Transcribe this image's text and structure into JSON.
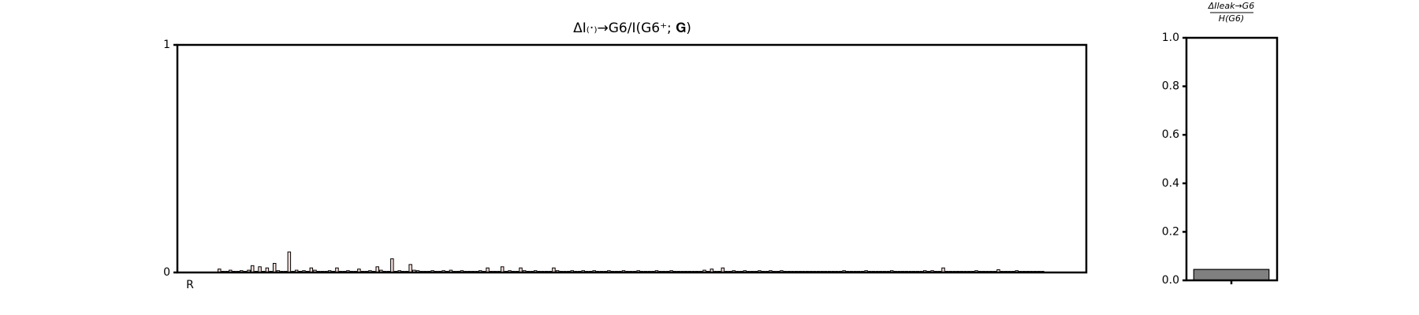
{
  "chart_data": [
    {
      "type": "bar",
      "title": "ΔI₍·₎→G6/I(G6⁺; 𝐆)",
      "categories": [
        "R",
        null,
        null,
        null,
        null,
        null,
        null,
        null,
        null,
        null,
        null,
        null,
        null,
        null,
        null,
        null,
        null,
        null,
        null,
        null,
        null,
        null,
        null,
        null,
        null,
        null,
        null,
        null,
        null,
        null,
        null,
        null,
        null,
        null,
        null,
        null,
        null,
        null,
        null,
        null,
        null,
        null,
        null,
        null,
        null,
        null,
        null,
        null,
        null,
        null,
        null,
        null,
        null,
        null,
        null,
        null,
        null,
        null,
        null,
        null,
        null,
        null,
        null,
        null,
        null,
        null,
        null,
        null,
        null,
        null,
        null,
        null,
        null,
        null,
        null,
        null,
        null,
        null,
        null,
        null,
        null,
        null,
        null,
        null,
        null,
        null,
        null,
        null,
        null,
        null,
        null,
        null,
        null,
        null,
        null,
        null,
        null,
        null,
        null,
        null,
        null,
        null,
        null,
        null,
        null,
        null,
        null,
        null,
        null,
        null,
        null,
        null,
        null,
        null,
        null,
        null,
        null,
        null,
        null,
        null,
        null,
        null,
        null,
        null,
        null,
        null,
        null,
        null,
        null,
        null,
        null,
        null,
        null,
        null,
        null,
        null,
        null,
        null,
        null,
        null,
        null,
        null,
        null,
        null,
        null,
        null,
        null,
        null,
        null,
        null,
        null,
        null,
        null,
        null,
        null,
        null,
        null,
        null,
        null,
        null,
        null,
        null,
        null,
        null,
        null,
        null,
        null,
        null,
        null,
        null,
        null,
        null,
        null,
        null,
        null,
        null,
        null,
        null,
        null,
        null,
        null,
        null,
        null,
        null,
        null,
        null,
        null,
        null,
        null,
        null,
        null,
        null,
        null,
        null,
        null,
        null,
        null,
        null,
        null,
        null,
        null,
        null,
        null,
        null,
        null,
        null,
        null,
        null,
        null,
        null,
        null,
        null,
        null,
        null,
        null,
        null,
        null,
        null,
        null,
        null,
        null,
        null,
        null,
        null,
        null,
        null,
        null,
        null,
        null,
        null,
        null,
        null,
        null,
        null,
        null,
        null,
        null,
        null,
        null,
        null
      ],
      "values": [
        0,
        0,
        0,
        0,
        0,
        0,
        0,
        0,
        0.015,
        0.005,
        0.005,
        0.01,
        0.005,
        0.005,
        0.008,
        0.005,
        0.01,
        0.03,
        0.005,
        0.025,
        0.005,
        0.02,
        0.005,
        0.04,
        0.008,
        0.005,
        0.005,
        0.09,
        0.005,
        0.01,
        0.005,
        0.008,
        0.005,
        0.02,
        0.01,
        0.005,
        0.005,
        0.005,
        0.008,
        0.005,
        0.02,
        0.005,
        0.005,
        0.008,
        0.005,
        0.005,
        0.015,
        0.005,
        0.005,
        0.008,
        0.005,
        0.025,
        0.01,
        0.005,
        0.005,
        0.06,
        0.005,
        0.008,
        0.005,
        0.005,
        0.035,
        0.01,
        0.008,
        0.005,
        0.005,
        0.005,
        0.008,
        0.005,
        0.005,
        0.008,
        0.005,
        0.01,
        0.005,
        0.005,
        0.008,
        0.005,
        0.005,
        0.005,
        0.005,
        0.008,
        0.005,
        0.02,
        0.005,
        0.005,
        0.005,
        0.025,
        0.005,
        0.008,
        0.005,
        0.005,
        0.02,
        0.008,
        0.005,
        0.005,
        0.008,
        0.005,
        0.005,
        0.005,
        0.005,
        0.02,
        0.008,
        0.005,
        0.005,
        0.005,
        0.008,
        0.005,
        0.005,
        0.008,
        0.005,
        0.005,
        0.008,
        0.005,
        0.005,
        0.005,
        0.008,
        0.005,
        0.005,
        0.005,
        0.008,
        0.005,
        0.005,
        0.005,
        0.008,
        0.005,
        0.005,
        0.005,
        0.005,
        0.008,
        0.005,
        0.005,
        0.005,
        0.008,
        0.005,
        0.005,
        0.005,
        0.005,
        0.005,
        0.005,
        0.005,
        0.005,
        0.01,
        0.005,
        0.015,
        0.005,
        0.005,
        0.02,
        0.005,
        0.005,
        0.008,
        0.005,
        0.005,
        0.008,
        0.005,
        0.005,
        0.005,
        0.008,
        0.005,
        0.005,
        0.008,
        0.005,
        0.005,
        0.008,
        0.005,
        0.005,
        0.005,
        0.005,
        0.005,
        0.005,
        0.005,
        0.005,
        0.005,
        0.005,
        0.005,
        0.005,
        0.005,
        0.005,
        0.005,
        0.005,
        0.008,
        0.005,
        0.005,
        0.005,
        0.005,
        0.005,
        0.008,
        0.005,
        0.005,
        0.005,
        0.005,
        0.005,
        0.005,
        0.008,
        0.005,
        0.005,
        0.005,
        0.005,
        0.005,
        0.005,
        0.005,
        0.005,
        0.008,
        0.005,
        0.008,
        0.005,
        0.005,
        0.02,
        0.005,
        0.005,
        0.005,
        0.005,
        0.005,
        0.005,
        0.005,
        0.005,
        0.008,
        0.005,
        0.005,
        0.005,
        0.005,
        0.005,
        0.012,
        0.005,
        0.005,
        0.005,
        0.005,
        0.008,
        0.005,
        0.005,
        0.005,
        0.005,
        0.005,
        0.005,
        0.005,
        0,
        0,
        0,
        0,
        0,
        0,
        0
      ],
      "color": "#f3ddd8",
      "ylim": [
        0,
        1
      ],
      "yticks": [
        0,
        1
      ]
    },
    {
      "type": "bar",
      "title_numerator": "ΔIleak→G6",
      "title_denominator": "H(G6)",
      "categories": [
        null
      ],
      "values": [
        0.045
      ],
      "color": "#808080",
      "ylim": [
        0,
        1
      ],
      "yticks": [
        {
          "value": 0,
          "label": "0.0"
        },
        {
          "value": 0.2,
          "label": "0.2"
        },
        {
          "value": 0.4,
          "label": "0.4"
        },
        {
          "value": 0.6,
          "label": "0.6"
        },
        {
          "value": 0.8,
          "label": "0.8"
        },
        {
          "value": 1,
          "label": "1.0"
        }
      ]
    }
  ]
}
